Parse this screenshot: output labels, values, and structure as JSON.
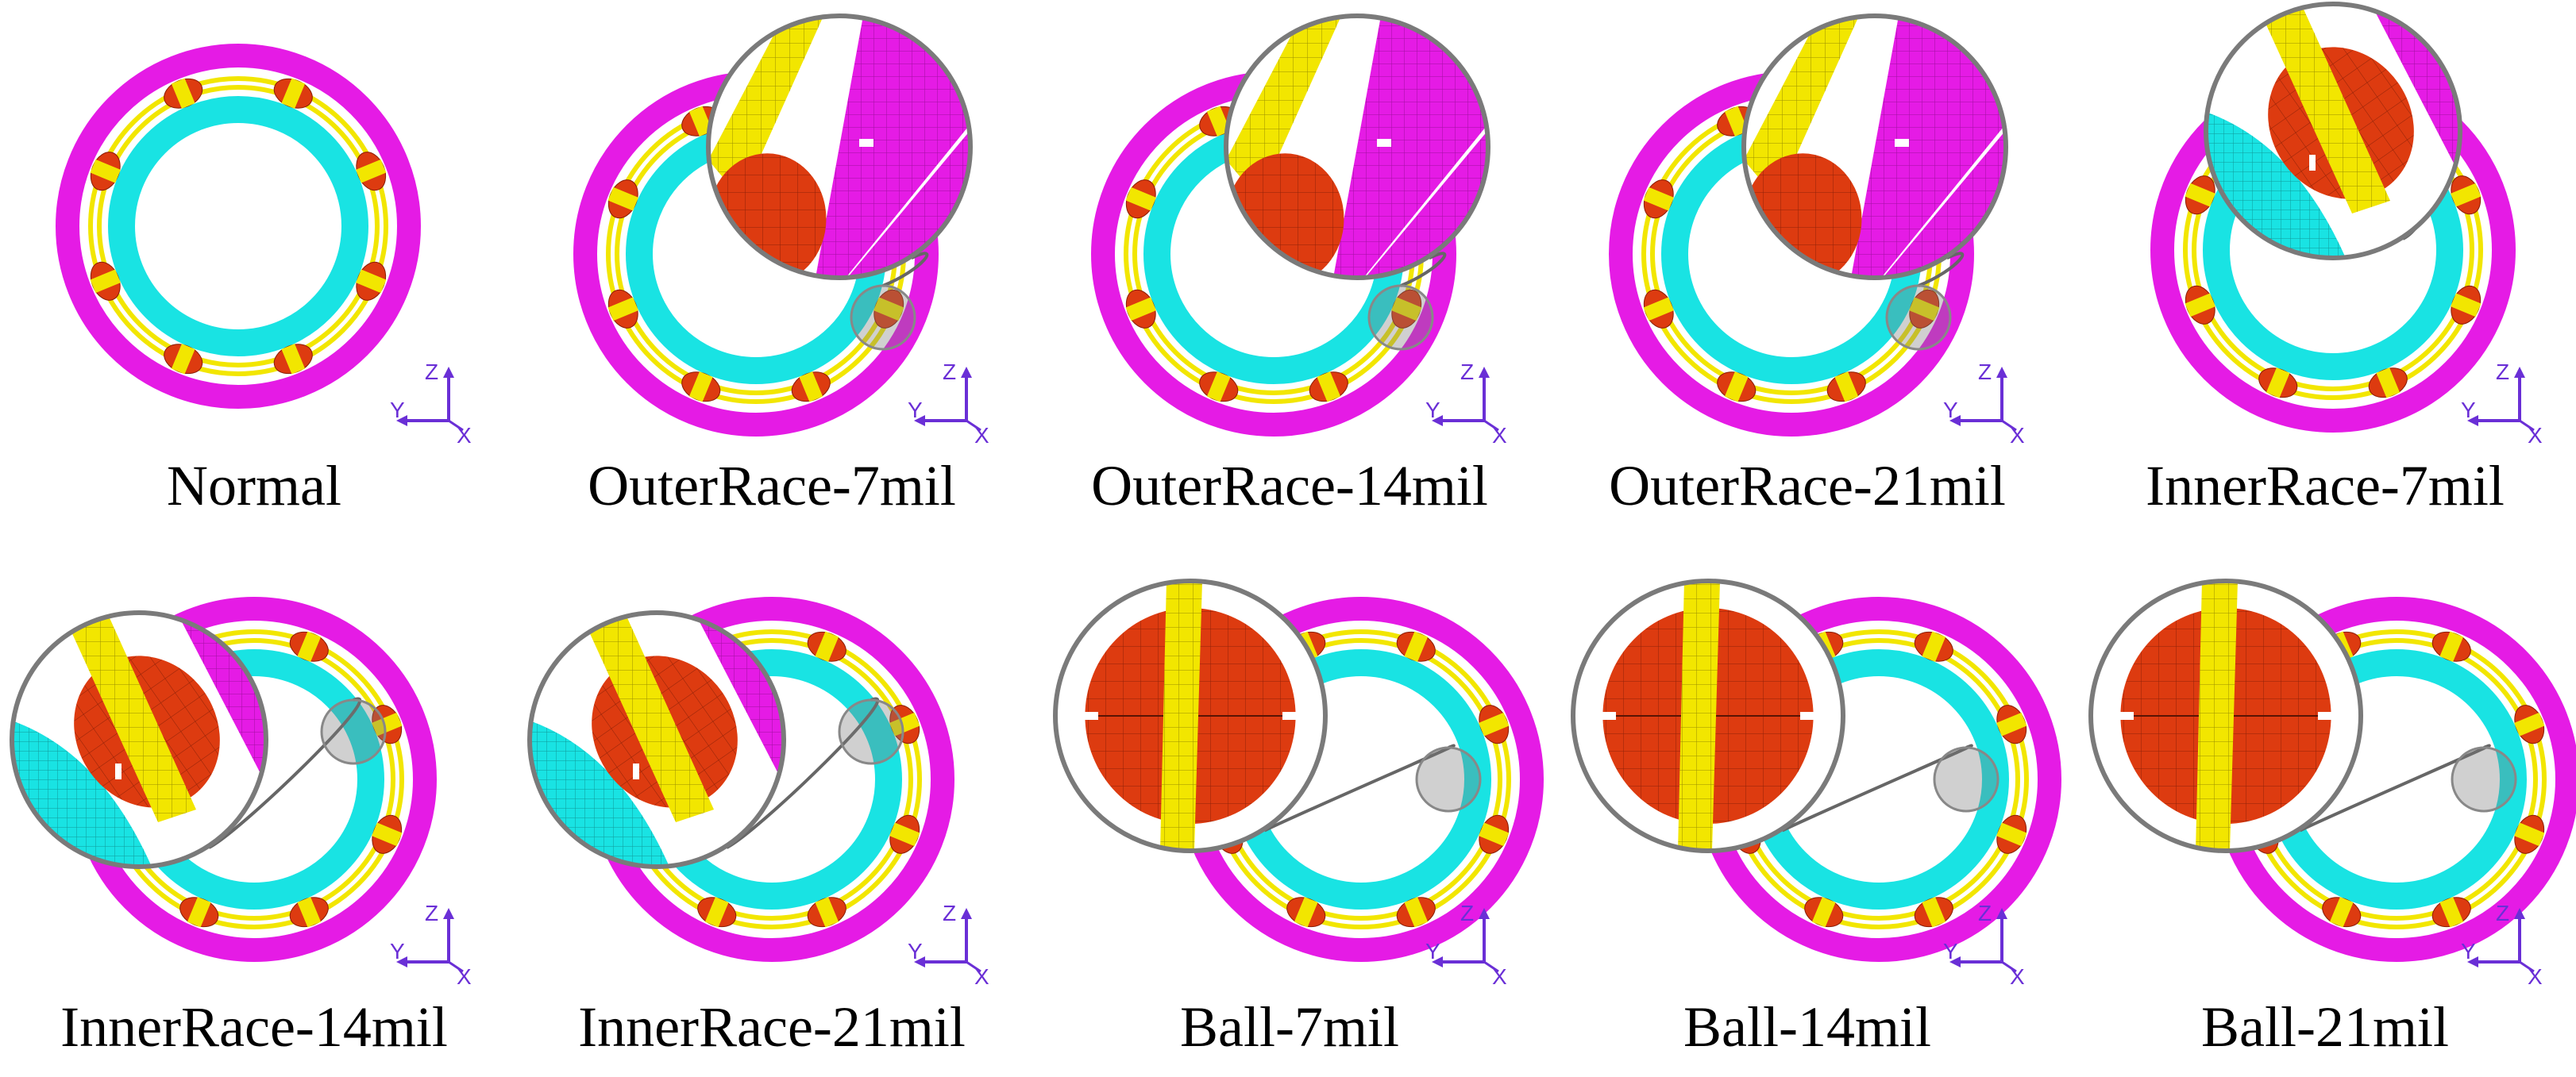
{
  "colors": {
    "outer_race": "#e51be5",
    "inner_race": "#19e3e3",
    "cage": "#f2e600",
    "ball": "#dd3b10",
    "axis": "#6a2fd6",
    "zoom_frame": "#7a7a7a"
  },
  "axes_labels": {
    "z": "Z",
    "y": "Y",
    "x": "X"
  },
  "panels": [
    {
      "label": "Normal",
      "fault": "none",
      "zoom": "none"
    },
    {
      "label": "OuterRace-7mil",
      "fault": "outer",
      "zoom": "outer"
    },
    {
      "label": "OuterRace-14mil",
      "fault": "outer",
      "zoom": "outer"
    },
    {
      "label": "OuterRace-21mil",
      "fault": "outer",
      "zoom": "outer"
    },
    {
      "label": "InnerRace-7mil",
      "fault": "inner",
      "zoom": "inner"
    },
    {
      "label": "InnerRace-14mil",
      "fault": "inner",
      "zoom": "inner"
    },
    {
      "label": "InnerRace-21mil",
      "fault": "inner",
      "zoom": "inner"
    },
    {
      "label": "Ball-7mil",
      "fault": "ball",
      "zoom": "ball"
    },
    {
      "label": "Ball-14mil",
      "fault": "ball",
      "zoom": "ball"
    },
    {
      "label": "Ball-21mil",
      "fault": "ball",
      "zoom": "ball"
    }
  ]
}
